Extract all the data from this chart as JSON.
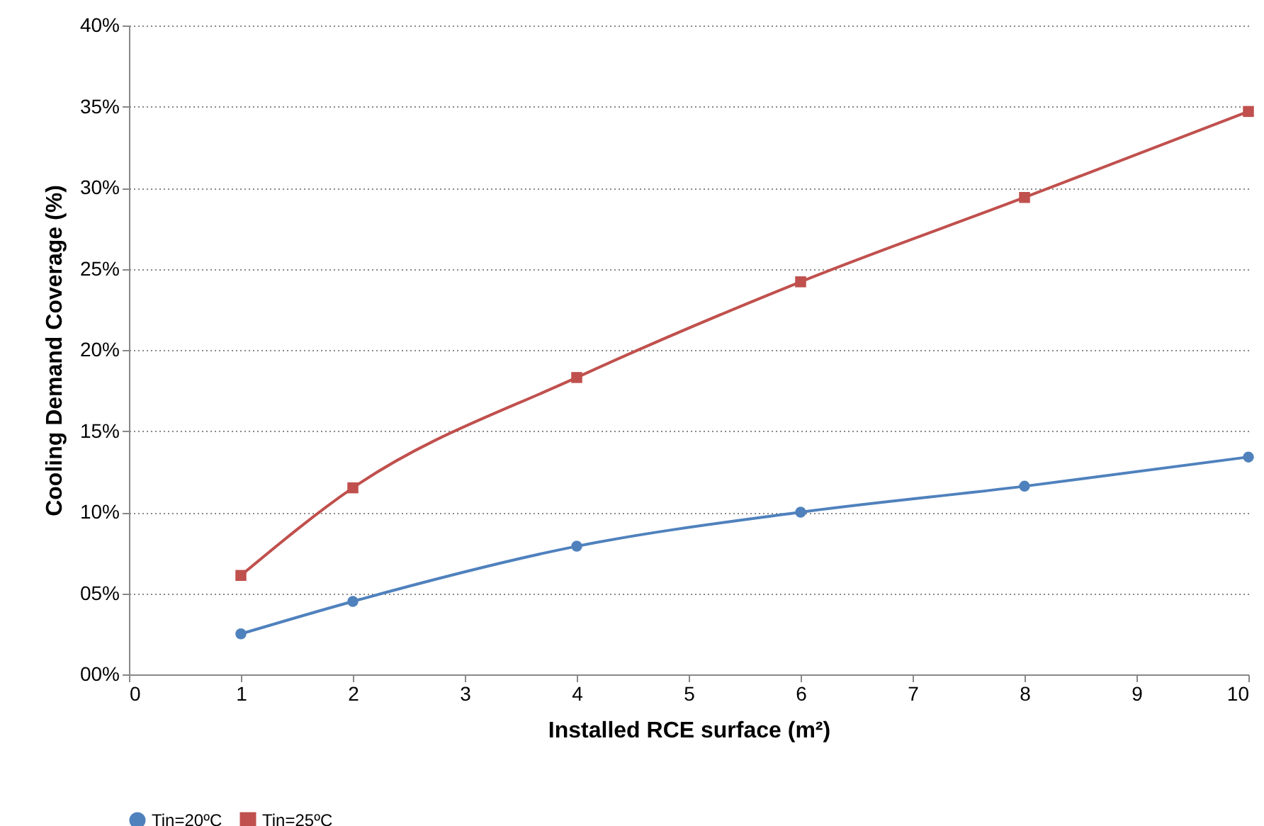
{
  "chart_data": {
    "type": "line",
    "xlabel": "Installed RCE surface (m²)",
    "ylabel": "Cooling Demand Coverage (%)",
    "x": [
      1,
      2,
      4,
      6,
      8,
      10
    ],
    "series": [
      {
        "name": "Tin=20ºC",
        "color": "#4f81bd",
        "marker": "circle",
        "values": [
          2.5,
          4.5,
          7.9,
          10.0,
          11.6,
          13.4
        ]
      },
      {
        "name": "Tin=25ºC",
        "color": "#c0504d",
        "marker": "square",
        "values": [
          6.1,
          11.5,
          18.3,
          24.2,
          29.4,
          34.7
        ]
      }
    ],
    "xlim": [
      0,
      10
    ],
    "xticks": [
      0,
      1,
      2,
      3,
      4,
      5,
      6,
      7,
      8,
      9,
      10
    ],
    "ylim": [
      0,
      40
    ],
    "yticks": [
      {
        "value": 0,
        "label": "00%"
      },
      {
        "value": 5,
        "label": "05%"
      },
      {
        "value": 10,
        "label": "10%"
      },
      {
        "value": 15,
        "label": "15%"
      },
      {
        "value": 20,
        "label": "20%"
      },
      {
        "value": 25,
        "label": "25%"
      },
      {
        "value": 30,
        "label": "30%"
      },
      {
        "value": 35,
        "label": "35%"
      },
      {
        "value": 40,
        "label": "40%"
      }
    ],
    "grid": "y",
    "legend": "bottom",
    "line_style": "solid"
  }
}
